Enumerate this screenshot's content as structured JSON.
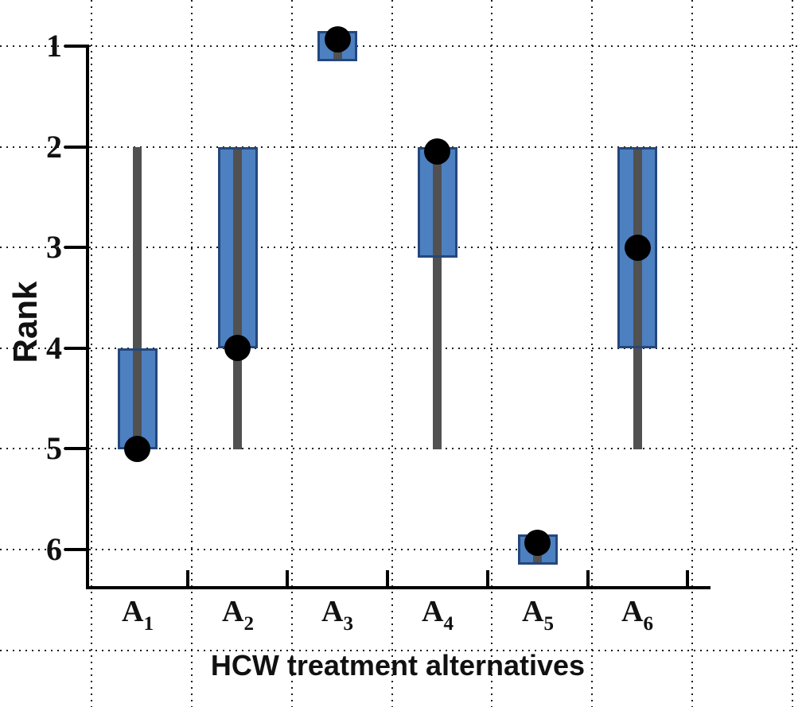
{
  "chart_data": {
    "type": "box",
    "title": "",
    "xlabel": "HCW treatment alternatives",
    "ylabel": "Rank",
    "y_axis": {
      "ticks": [
        1,
        2,
        3,
        4,
        5,
        6
      ],
      "min": 0.6,
      "max": 6.5,
      "inverted": true
    },
    "categories": [
      {
        "base": "A",
        "sub": "1"
      },
      {
        "base": "A",
        "sub": "2"
      },
      {
        "base": "A",
        "sub": "3"
      },
      {
        "base": "A",
        "sub": "4"
      },
      {
        "base": "A",
        "sub": "5"
      },
      {
        "base": "A",
        "sub": "6"
      }
    ],
    "series": [
      {
        "label": "A1",
        "whisker": [
          2,
          5
        ],
        "box": [
          4,
          5
        ],
        "dot": 5
      },
      {
        "label": "A2",
        "whisker": [
          2,
          5
        ],
        "box": [
          2,
          4
        ],
        "dot": 4
      },
      {
        "label": "A3",
        "whisker": [
          1,
          1
        ],
        "box": [
          1,
          1
        ],
        "dot": 1
      },
      {
        "label": "A4",
        "whisker": [
          2,
          5
        ],
        "box": [
          2,
          3.1
        ],
        "dot": 2.05
      },
      {
        "label": "A5",
        "whisker": [
          6,
          6
        ],
        "box": [
          6,
          6
        ],
        "dot": 6
      },
      {
        "label": "A6",
        "whisker": [
          2,
          5
        ],
        "box": [
          2,
          4
        ],
        "dot": 3
      }
    ],
    "grid": {
      "style": "dotted",
      "horizontal_at_ranks": [
        1,
        2,
        3,
        4,
        5,
        6,
        7
      ],
      "vertical_count": 8,
      "extends_beyond_axes": true
    },
    "legend": "none",
    "colors": {
      "box_fill": "#4d80c0",
      "box_border": "#24477c",
      "whisker": "#515151",
      "dot": "#000000",
      "grid": "#1c1c1c",
      "axis": "#000000",
      "text": "#111111"
    }
  }
}
